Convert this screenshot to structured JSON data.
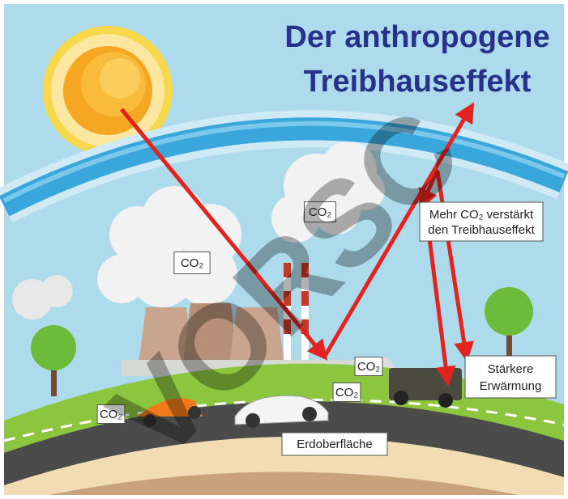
{
  "title": {
    "line1": "Der anthropogene",
    "line2": "Treibhauseffekt"
  },
  "co2_labels": [
    "CO₂",
    "CO₂",
    "CO₂",
    "CO₂",
    "CO₂"
  ],
  "callouts": {
    "amplify": {
      "line1": "Mehr CO₂ verstärkt",
      "line2": "den Treibhauseffekt"
    },
    "warming": {
      "line1": "Stärkere",
      "line2": "Erwärmung"
    },
    "surface": "Erdoberfläche"
  },
  "watermark": "VORSC"
}
